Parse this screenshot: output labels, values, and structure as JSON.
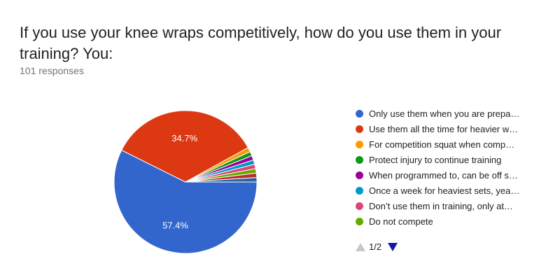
{
  "title": "If you use your knee wraps competitively, how do you use them in your training? You:",
  "subtitle": "101 responses",
  "pager": {
    "label": "1/2"
  },
  "chart_data": {
    "type": "pie",
    "title": "If you use your knee wraps competitively, how do you use them in your training? You:",
    "slices": [
      {
        "label": "Only use them when you are prepa…",
        "value": 57.4,
        "color": "#3366cc",
        "data_label": "57.4%"
      },
      {
        "label": "Use them all the time for heavier w…",
        "value": 34.7,
        "color": "#dc3912",
        "data_label": "34.7%"
      },
      {
        "label": "For competition squat when comp…",
        "value": 1.0,
        "color": "#ff9900",
        "data_label": ""
      },
      {
        "label": "Protect injury to continue training",
        "value": 1.0,
        "color": "#109618",
        "data_label": ""
      },
      {
        "label": "When programmed to, can be off s…",
        "value": 1.0,
        "color": "#990099",
        "data_label": ""
      },
      {
        "label": "Once a week for heaviest sets, yea…",
        "value": 1.0,
        "color": "#0099c6",
        "data_label": ""
      },
      {
        "label": "Don’t use them in training, only at…",
        "value": 1.0,
        "color": "#dd4477",
        "data_label": ""
      },
      {
        "label": "Do not compete",
        "value": 1.0,
        "color": "#66aa00",
        "data_label": ""
      },
      {
        "label": "",
        "value": 1.0,
        "color": "#b82e2e",
        "data_label": ""
      },
      {
        "label": "",
        "value": 1.0,
        "color": "#316395",
        "data_label": ""
      }
    ],
    "legend_position": "right"
  }
}
